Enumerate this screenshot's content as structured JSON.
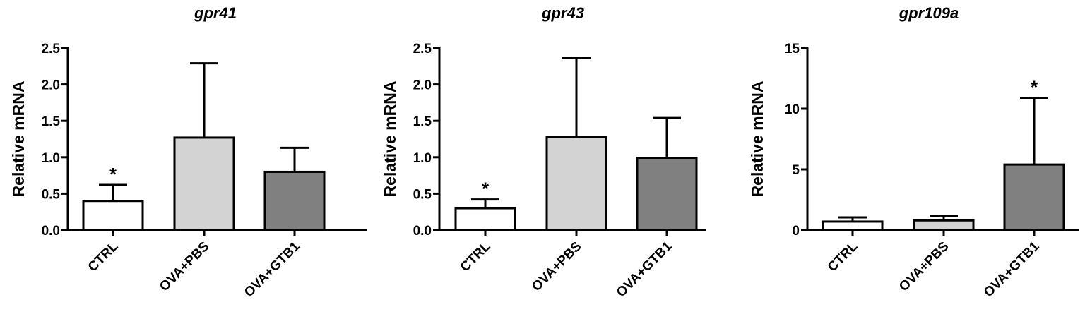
{
  "chart_data": [
    {
      "type": "bar",
      "title": "gpr41",
      "ylabel": "Relative mRNA",
      "categories": [
        "CTRL",
        "OVA+PBS",
        "OVA+GTB1"
      ],
      "values": [
        0.4,
        1.27,
        0.8
      ],
      "errors": [
        0.22,
        1.02,
        0.33
      ],
      "ylim": [
        0,
        2.5
      ],
      "yticks": [
        "0.0",
        "0.5",
        "1.0",
        "1.5",
        "2.0",
        "2.5"
      ],
      "significance": [
        "*",
        "",
        ""
      ],
      "bar_colors": [
        "#ffffff",
        "#d3d3d3",
        "#808080"
      ]
    },
    {
      "type": "bar",
      "title": "gpr43",
      "ylabel": "Relative mRNA",
      "categories": [
        "CTRL",
        "OVA+PBS",
        "OVA+GTB1"
      ],
      "values": [
        0.3,
        1.28,
        0.99
      ],
      "errors": [
        0.12,
        1.08,
        0.55
      ],
      "ylim": [
        0,
        2.5
      ],
      "yticks": [
        "0.0",
        "0.5",
        "1.0",
        "1.5",
        "2.0",
        "2.5"
      ],
      "significance": [
        "*",
        "",
        ""
      ],
      "bar_colors": [
        "#ffffff",
        "#d3d3d3",
        "#808080"
      ]
    },
    {
      "type": "bar",
      "title": "gpr109a",
      "ylabel": "Relative mRNA",
      "categories": [
        "CTRL",
        "OVA+PBS",
        "OVA+GTB1"
      ],
      "values": [
        0.7,
        0.8,
        5.4
      ],
      "errors": [
        0.35,
        0.35,
        5.5
      ],
      "ylim": [
        0,
        15
      ],
      "yticks": [
        "0",
        "5",
        "10",
        "15"
      ],
      "significance": [
        "",
        "",
        "*"
      ],
      "bar_colors": [
        "#ffffff",
        "#d3d3d3",
        "#808080"
      ]
    }
  ]
}
